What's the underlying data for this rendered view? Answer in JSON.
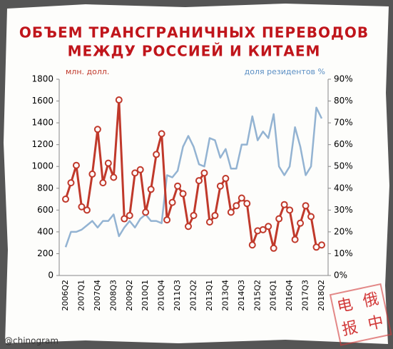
{
  "chart_data": {
    "type": "line",
    "title": [
      "ОБЪЕМ ТРАНСГРАНИЧНЫХ ПЕРЕВОДОВ",
      "МЕЖДУ РОССИЕЙ И КИТАЕМ"
    ],
    "ylabel": "млн. долл.",
    "y2label": "доля резидентов %",
    "categories": [
      "2006Q2",
      null,
      null,
      "2007Q1",
      null,
      null,
      "2007Q4",
      null,
      null,
      "2008Q3",
      null,
      null,
      "2009Q2",
      null,
      null,
      "2010Q1",
      null,
      null,
      "2010Q4",
      null,
      null,
      "2011Q3",
      null,
      null,
      "2012Q2",
      null,
      null,
      "2013Q1",
      null,
      null,
      "2013Q4",
      null,
      null,
      "2014Q3",
      null,
      null,
      "2015Q2",
      null,
      null,
      "2016Q1",
      null,
      null,
      "2016Q4",
      null,
      null,
      "2017Q3",
      null,
      null,
      "2018Q2"
    ],
    "series": [
      {
        "color": "#c0392b",
        "values": [
          700,
          850,
          1010,
          630,
          600,
          930,
          1340,
          850,
          1030,
          900,
          1610,
          520,
          550,
          940,
          970,
          580,
          790,
          1110,
          1300,
          510,
          670,
          820,
          750,
          450,
          550,
          870,
          940,
          490,
          550,
          820,
          890,
          580,
          640,
          710,
          660,
          280,
          410,
          420,
          450,
          250,
          520,
          650,
          600,
          330,
          480,
          640,
          540,
          260,
          280
        ]
      },
      {
        "color": "#93b3d2",
        "axis": "y2",
        "values": [
          13,
          20,
          20,
          21,
          23,
          25,
          22,
          25,
          25,
          28,
          18,
          22,
          25,
          22,
          26,
          28,
          25,
          25,
          24,
          46,
          45,
          48,
          59,
          64,
          59,
          51,
          50,
          63,
          62,
          54,
          58,
          49,
          49,
          60,
          60,
          73,
          62,
          66,
          63,
          74,
          50,
          46,
          50,
          68,
          59,
          46,
          50,
          77,
          72
        ]
      }
    ],
    "ylim": [
      0,
      1800
    ],
    "yticks": [
      0,
      200,
      400,
      600,
      800,
      1000,
      1200,
      1400,
      1600,
      1800
    ],
    "y2lim": [
      0,
      90
    ],
    "y2ticks": [
      {
        "value": 0,
        "label": "0%"
      },
      {
        "value": 10,
        "label": "10%"
      },
      {
        "value": 20,
        "label": "20%"
      },
      {
        "value": 30,
        "label": "30%"
      },
      {
        "value": 40,
        "label": "40%"
      },
      {
        "value": 50,
        "label": "50%"
      },
      {
        "value": 60,
        "label": "60%"
      },
      {
        "value": 70,
        "label": "70%"
      },
      {
        "value": 80,
        "label": "80%"
      },
      {
        "value": 90,
        "label": "90%"
      }
    ],
    "watermark": "@chinogram",
    "stamp": [
      "电",
      "俄",
      "报",
      "中"
    ]
  }
}
